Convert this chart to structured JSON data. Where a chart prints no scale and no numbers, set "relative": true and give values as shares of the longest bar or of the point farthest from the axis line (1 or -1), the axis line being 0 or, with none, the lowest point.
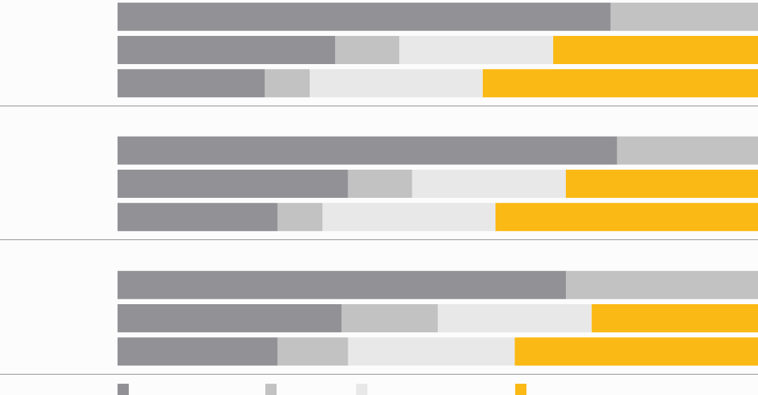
{
  "chart_data": [
    {
      "type": "bar",
      "orientation": "horizontal",
      "stacked": true,
      "relative": true,
      "tick_labels": false,
      "categories": [
        null,
        null,
        null
      ],
      "series": [
        {
          "color": "#929195",
          "values": [
            0.77,
            0.34,
            0.23
          ]
        },
        {
          "color": "#c2c2c3",
          "values": [
            0.23,
            0.1,
            0.07
          ]
        },
        {
          "color": "#e8e8e8",
          "values": [
            0,
            0.24,
            0.27
          ]
        },
        {
          "color": "#fbb915",
          "values": [
            0,
            0.32,
            0.43
          ]
        }
      ]
    },
    {
      "type": "bar",
      "orientation": "horizontal",
      "stacked": true,
      "relative": true,
      "tick_labels": false,
      "categories": [
        null,
        null,
        null
      ],
      "series": [
        {
          "color": "#929195",
          "values": [
            0.78,
            0.36,
            0.25
          ]
        },
        {
          "color": "#c2c2c3",
          "values": [
            0.22,
            0.1,
            0.07
          ]
        },
        {
          "color": "#e8e8e8",
          "values": [
            0,
            0.24,
            0.27
          ]
        },
        {
          "color": "#fbb915",
          "values": [
            0,
            0.3,
            0.41
          ]
        }
      ]
    },
    {
      "type": "bar",
      "orientation": "horizontal",
      "stacked": true,
      "relative": true,
      "tick_labels": false,
      "categories": [
        null,
        null,
        null
      ],
      "series": [
        {
          "color": "#929195",
          "values": [
            0.7,
            0.35,
            0.25
          ]
        },
        {
          "color": "#c2c2c3",
          "values": [
            0.3,
            0.15,
            0.11
          ]
        },
        {
          "color": "#e8e8e8",
          "values": [
            0,
            0.24,
            0.26
          ]
        },
        {
          "color": "#fbb915",
          "values": [
            0,
            0.26,
            0.38
          ]
        }
      ]
    }
  ]
}
